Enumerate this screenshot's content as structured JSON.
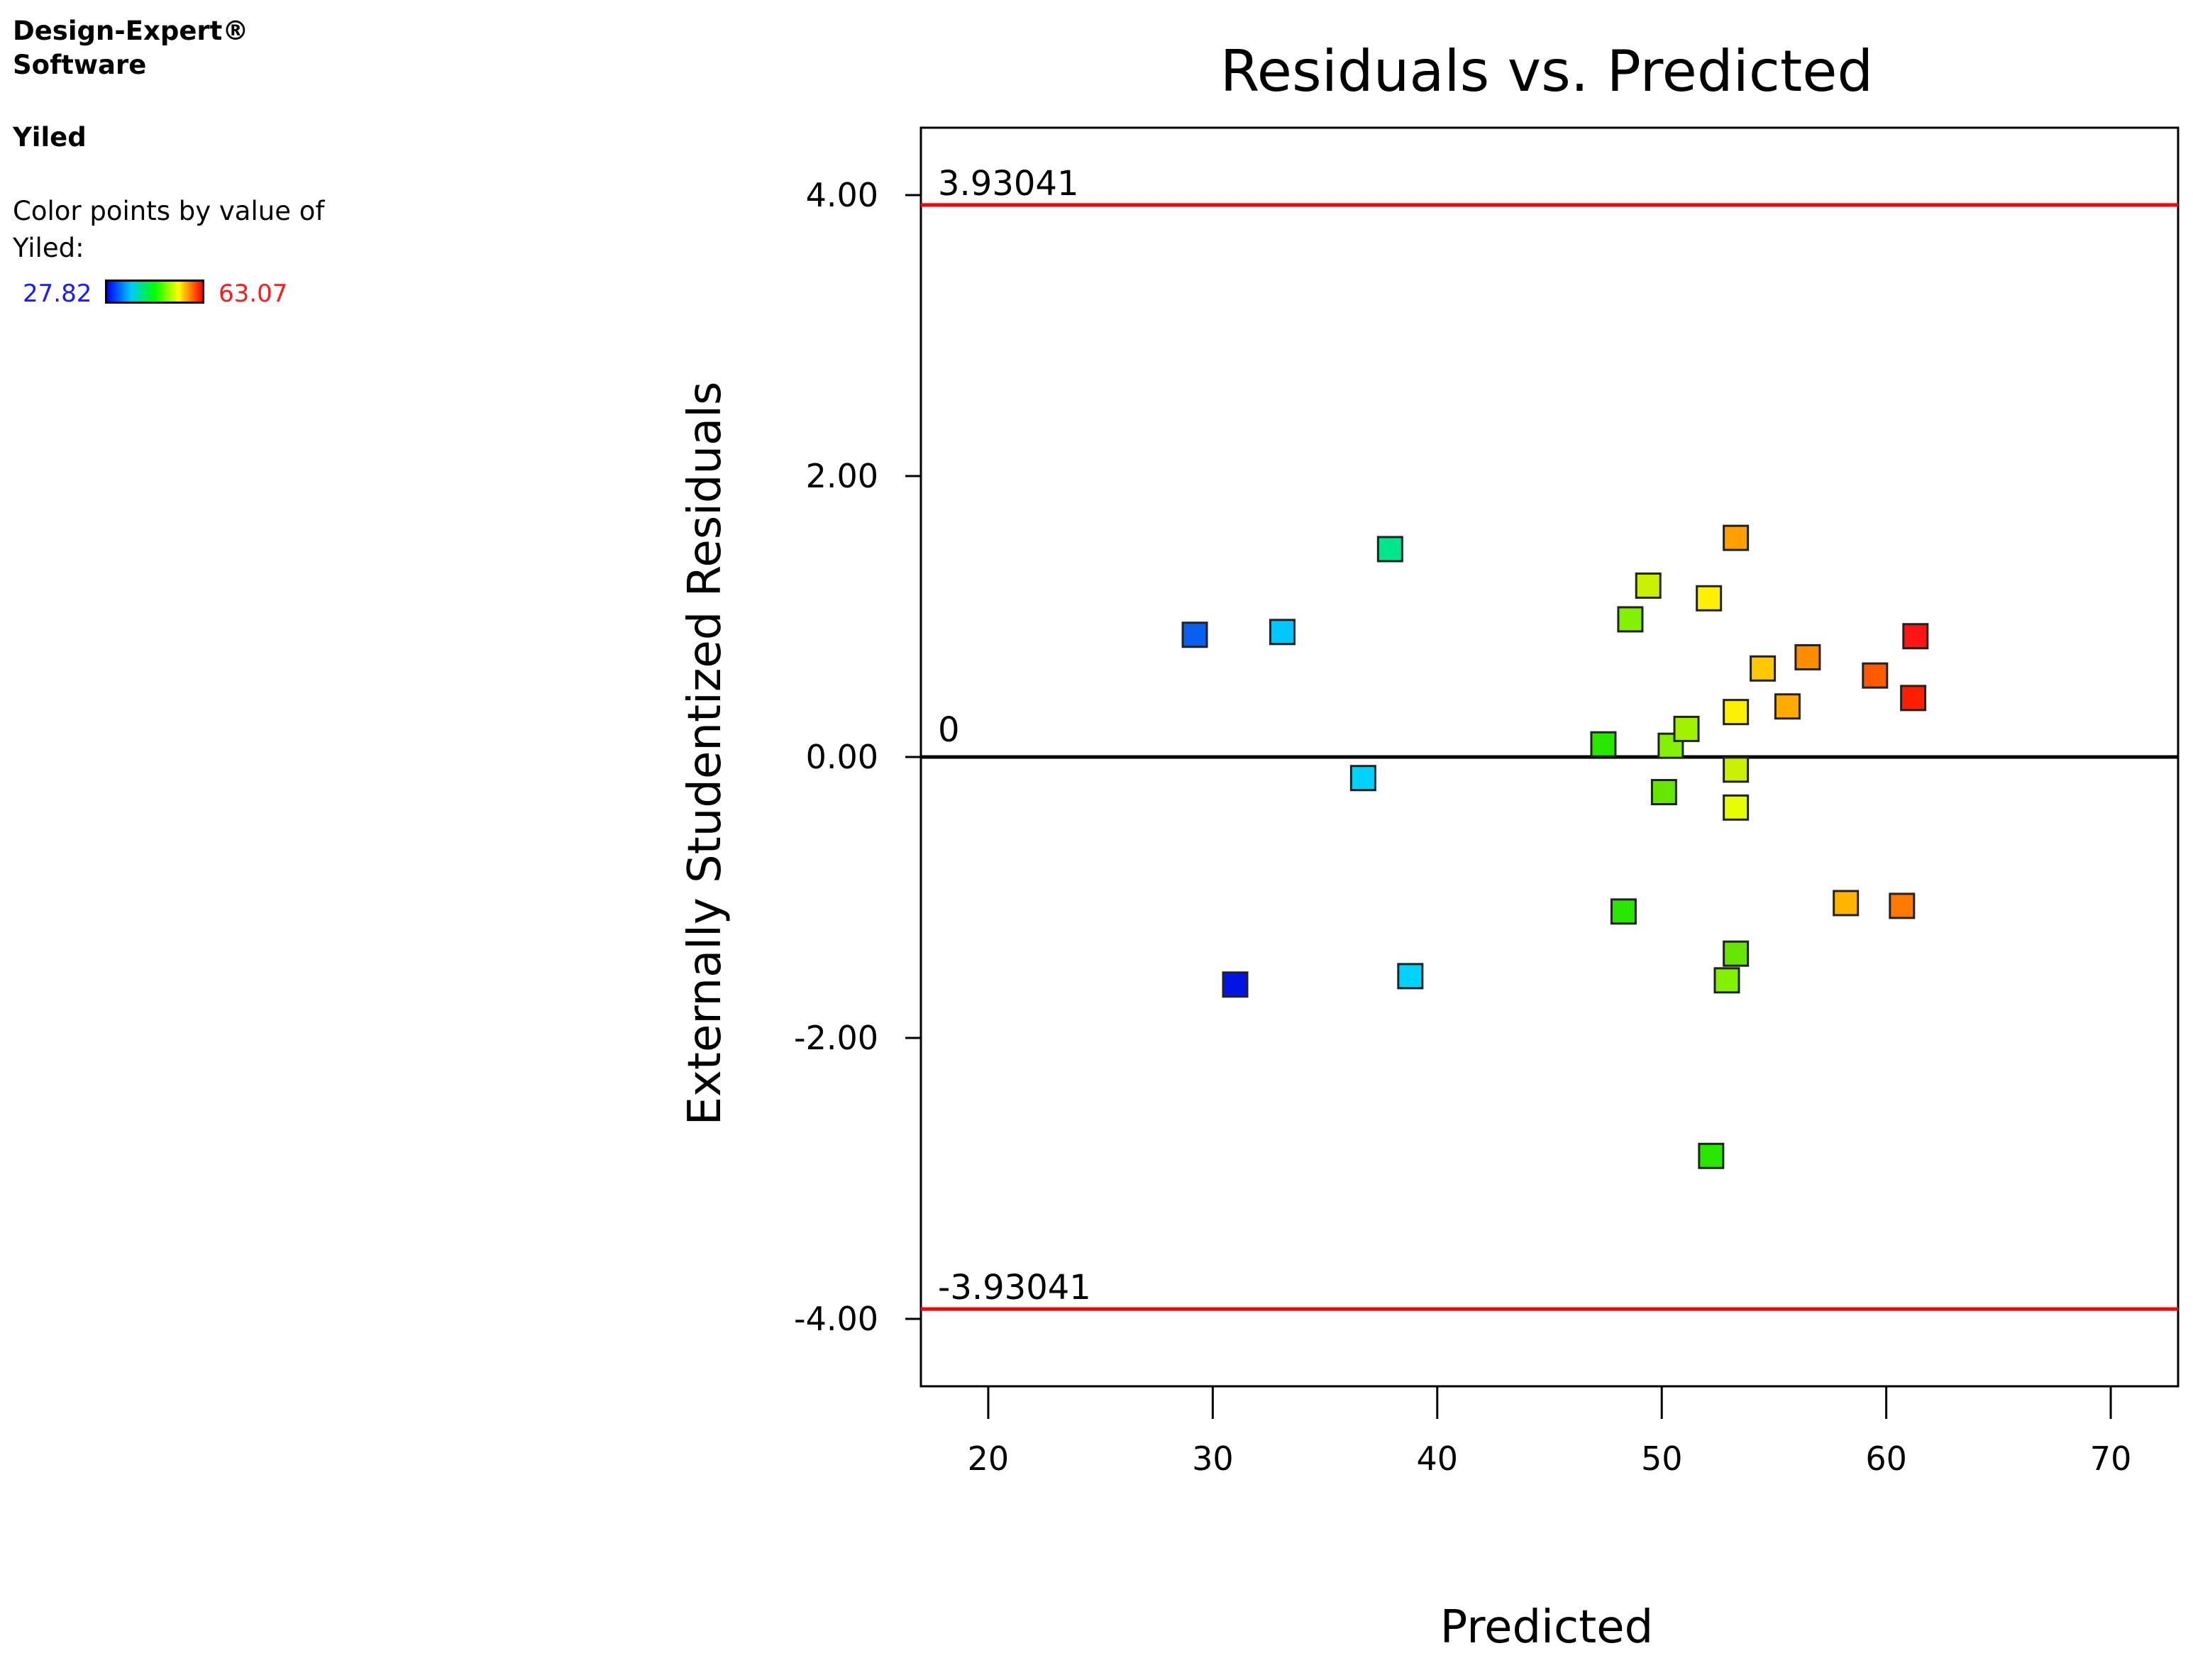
{
  "side_panel": {
    "app_title": "Design-Expert® Software",
    "response_name": "Yiled",
    "color_caption": "Color points by value of Yiled:",
    "scale_min": "27.82",
    "scale_max": "63.07"
  },
  "chart_data": {
    "type": "scatter",
    "title": "Residuals vs. Predicted",
    "xlabel": "Predicted",
    "ylabel": "Externally Studentized Residuals",
    "xlim": [
      17,
      73
    ],
    "ylim": [
      -4.48,
      4.48
    ],
    "x_ticks": [
      20,
      30,
      40,
      50,
      60,
      70
    ],
    "x_tick_labels": [
      "20",
      "30",
      "40",
      "50",
      "60",
      "70"
    ],
    "y_ticks": [
      -4,
      -2,
      0,
      2,
      4
    ],
    "y_tick_labels": [
      "-4.00",
      "-2.00",
      "0.00",
      "2.00",
      "4.00"
    ],
    "limit_lines": [
      {
        "value": 3.93041,
        "label": "3.93041",
        "color": "#ff0000"
      },
      {
        "value": -3.93041,
        "label": "-3.93041",
        "color": "#ff0000"
      }
    ],
    "zero_line": {
      "value": 0,
      "label": "0",
      "color": "#000000"
    },
    "color_scale": {
      "min": 27.82,
      "max": 63.07,
      "colors": [
        "#0000ff",
        "#00c8ff",
        "#00ff00",
        "#ffff00",
        "#ff0000"
      ]
    },
    "points": [
      {
        "x": 29.2,
        "y": 0.87,
        "color": "#0a5ef0"
      },
      {
        "x": 33.1,
        "y": 0.89,
        "color": "#00c8ff"
      },
      {
        "x": 37.9,
        "y": 1.48,
        "color": "#00e68c"
      },
      {
        "x": 36.7,
        "y": -0.15,
        "color": "#00d2ff"
      },
      {
        "x": 31.0,
        "y": -1.62,
        "color": "#0014e6"
      },
      {
        "x": 38.8,
        "y": -1.56,
        "color": "#00d2ff"
      },
      {
        "x": 47.4,
        "y": 0.09,
        "color": "#28e600"
      },
      {
        "x": 48.6,
        "y": 0.98,
        "color": "#82f000"
      },
      {
        "x": 49.4,
        "y": 1.22,
        "color": "#c8f000"
      },
      {
        "x": 50.4,
        "y": 0.08,
        "color": "#82f000"
      },
      {
        "x": 51.1,
        "y": 0.2,
        "color": "#a0f000"
      },
      {
        "x": 50.1,
        "y": -0.25,
        "color": "#64e600"
      },
      {
        "x": 52.1,
        "y": 1.13,
        "color": "#fff000"
      },
      {
        "x": 53.3,
        "y": 1.56,
        "color": "#ffa000"
      },
      {
        "x": 53.3,
        "y": 0.32,
        "color": "#fff000"
      },
      {
        "x": 53.3,
        "y": -0.09,
        "color": "#c8f000"
      },
      {
        "x": 53.3,
        "y": -0.36,
        "color": "#e6ff00"
      },
      {
        "x": 54.5,
        "y": 0.63,
        "color": "#ffc800"
      },
      {
        "x": 55.6,
        "y": 0.36,
        "color": "#ffaa00"
      },
      {
        "x": 56.5,
        "y": 0.71,
        "color": "#ff8c00"
      },
      {
        "x": 59.5,
        "y": 0.58,
        "color": "#ff5a00"
      },
      {
        "x": 61.3,
        "y": 0.86,
        "color": "#ff1414"
      },
      {
        "x": 61.2,
        "y": 0.42,
        "color": "#ff1e00"
      },
      {
        "x": 48.3,
        "y": -1.1,
        "color": "#28e600"
      },
      {
        "x": 53.3,
        "y": -1.4,
        "color": "#64e600"
      },
      {
        "x": 52.9,
        "y": -1.59,
        "color": "#82f000"
      },
      {
        "x": 52.2,
        "y": -2.84,
        "color": "#28e600"
      },
      {
        "x": 58.2,
        "y": -1.04,
        "color": "#ffb400"
      },
      {
        "x": 60.7,
        "y": -1.06,
        "color": "#ff7800"
      }
    ]
  }
}
